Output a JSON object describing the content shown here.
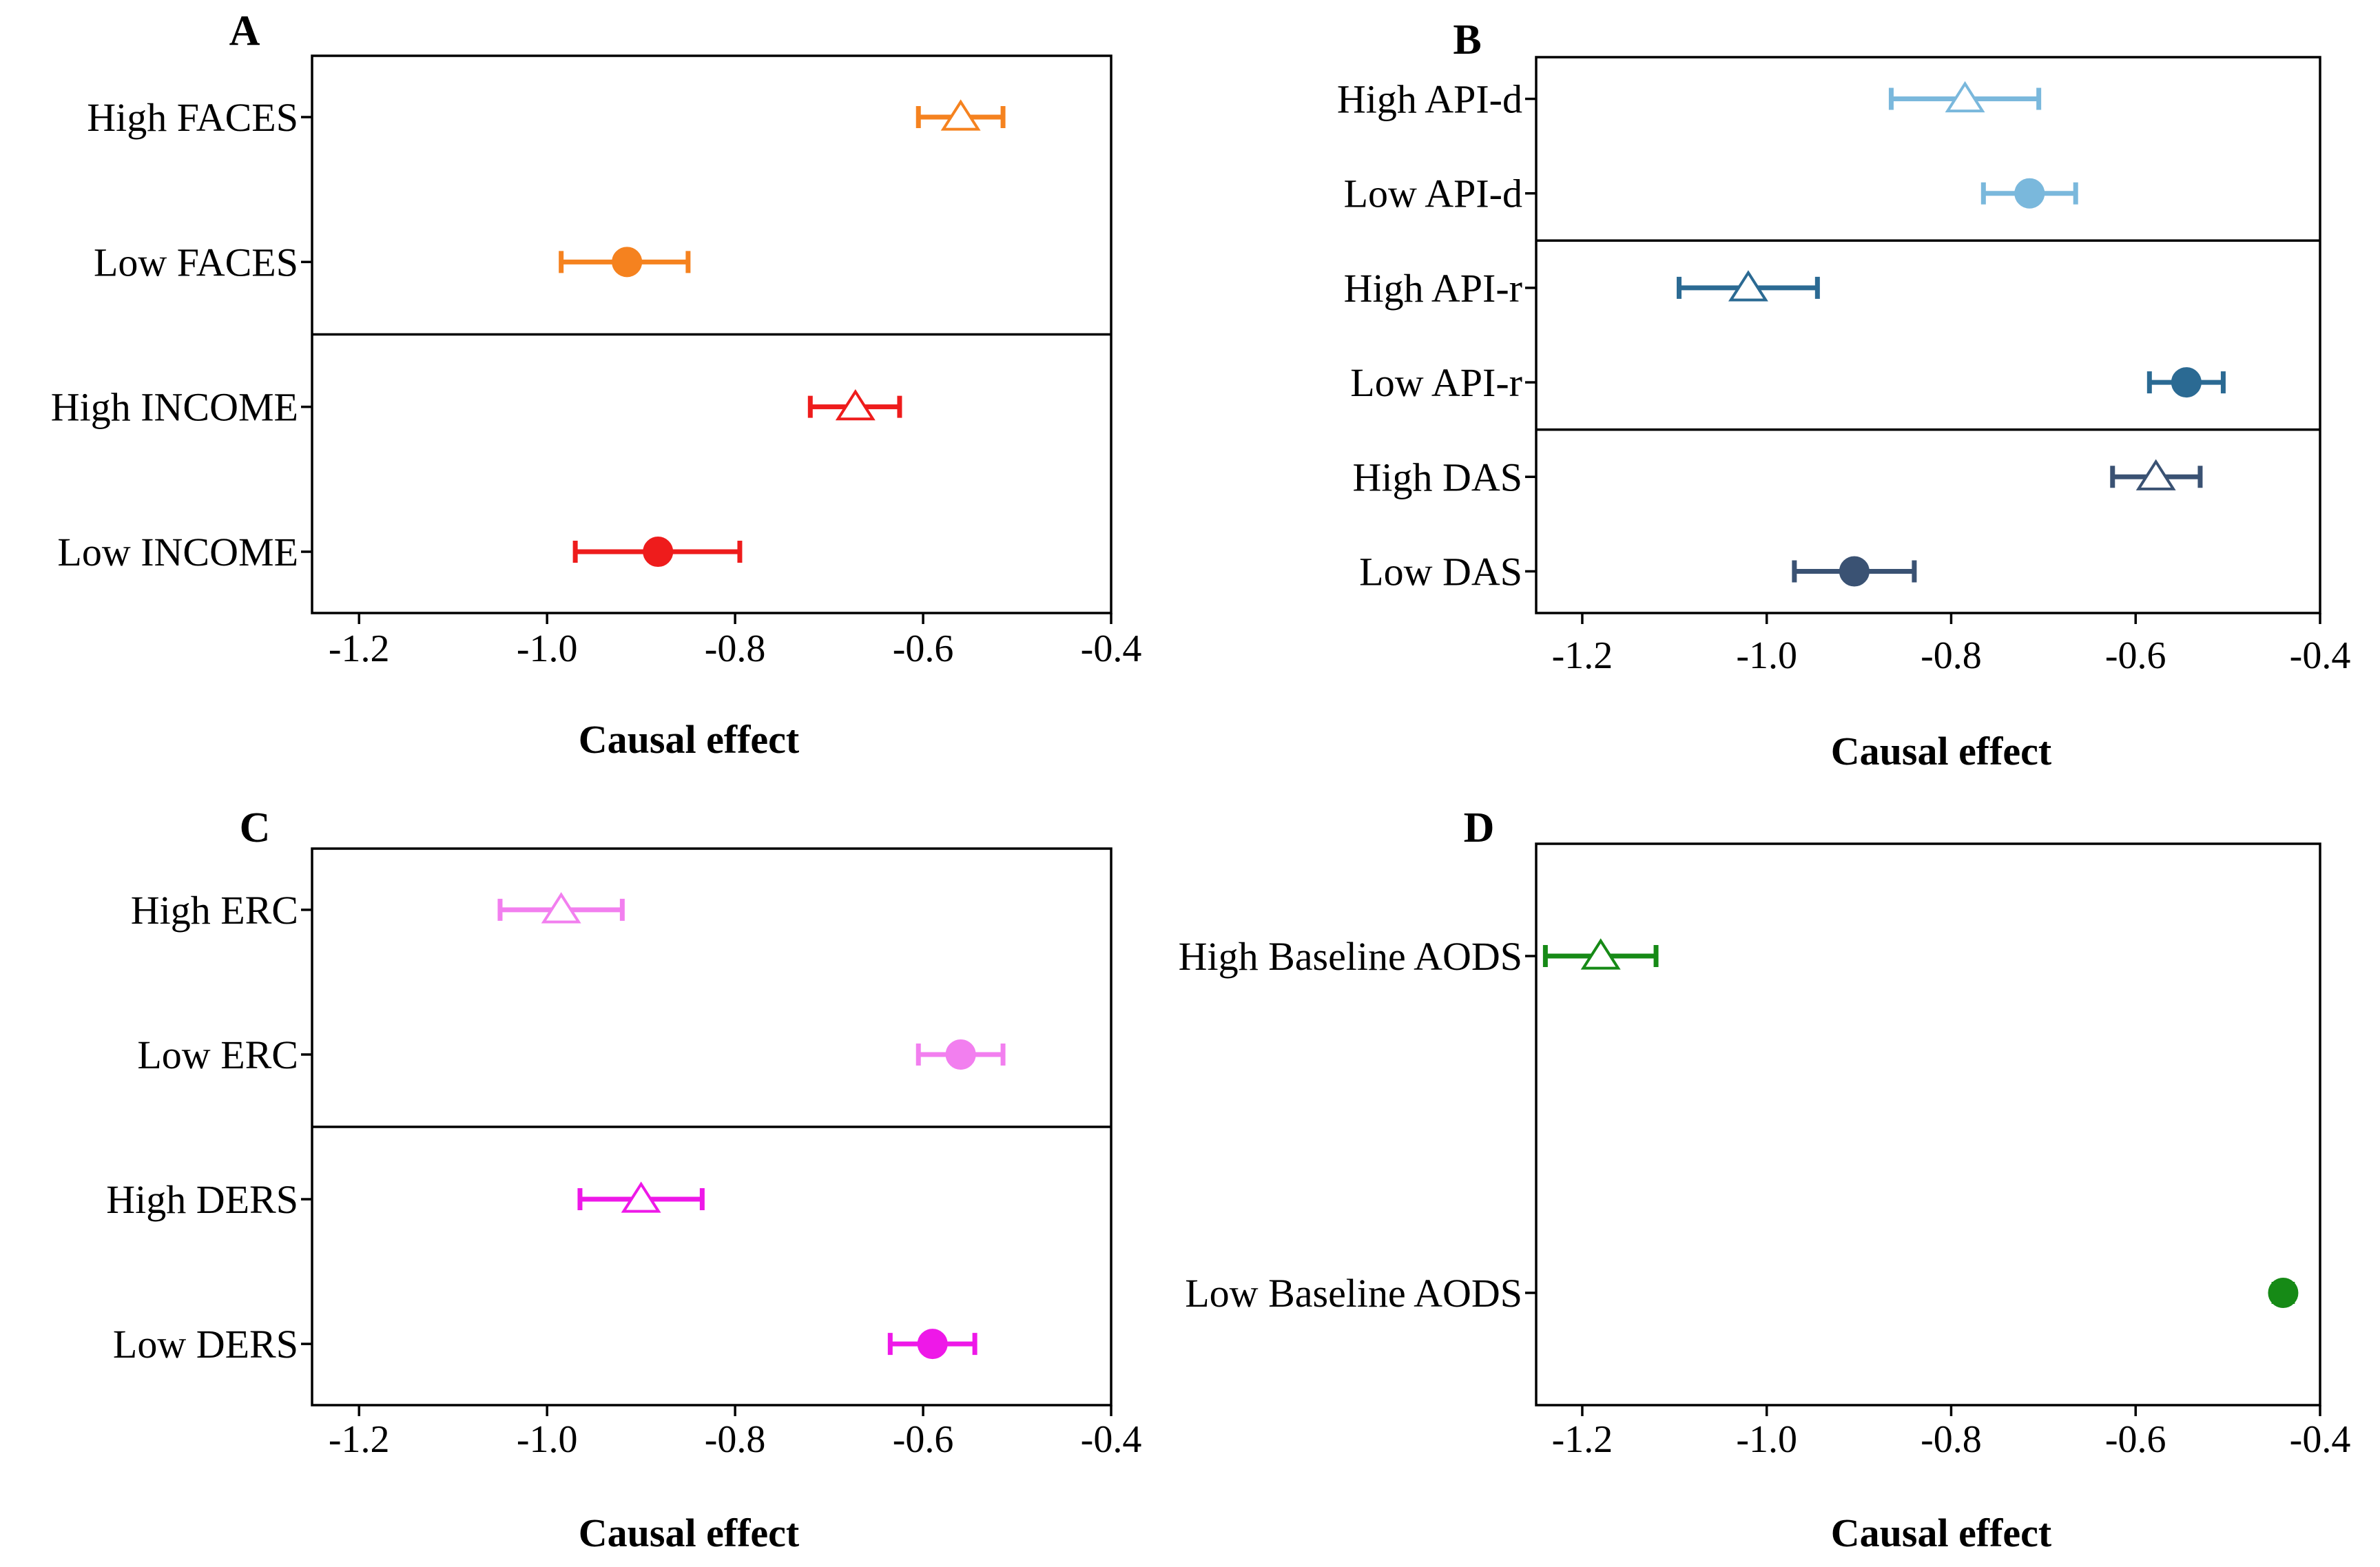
{
  "chart_data": [
    {
      "type": "forest",
      "panel": "A",
      "xlabel": "Causal effect",
      "xlim": [
        -1.25,
        -0.4
      ],
      "xticks": [
        "-1.2",
        "-1.0",
        "-0.8",
        "-0.6",
        "-0.4"
      ],
      "xtick_values": [
        -1.2,
        -1.0,
        -0.8,
        -0.6,
        -0.4
      ],
      "separators_after": [
        2
      ],
      "rows": [
        {
          "label": "High FACES",
          "estimate": -0.56,
          "lower": -0.605,
          "upper": -0.515,
          "marker": "triangle-open",
          "color": "#F5821F"
        },
        {
          "label": "Low FACES",
          "estimate": -0.915,
          "lower": -0.985,
          "upper": -0.85,
          "marker": "circle-filled",
          "color": "#F5821F"
        },
        {
          "label": "High INCOME",
          "estimate": -0.672,
          "lower": -0.72,
          "upper": -0.625,
          "marker": "triangle-open",
          "color": "#EE1C1C"
        },
        {
          "label": "Low INCOME",
          "estimate": -0.882,
          "lower": -0.97,
          "upper": -0.795,
          "marker": "circle-filled",
          "color": "#EE1C1C"
        }
      ]
    },
    {
      "type": "forest",
      "panel": "B",
      "xlabel": "Causal effect",
      "xlim": [
        -1.25,
        -0.4
      ],
      "xticks": [
        "-1.2",
        "-1.0",
        "-0.8",
        "-0.6",
        "-0.4"
      ],
      "xtick_values": [
        -1.2,
        -1.0,
        -0.8,
        -0.6,
        -0.4
      ],
      "separators_after": [
        2,
        4
      ],
      "rows": [
        {
          "label": "High API-d",
          "estimate": -0.785,
          "lower": -0.865,
          "upper": -0.705,
          "marker": "triangle-open",
          "color": "#7AB8DC"
        },
        {
          "label": "Low API-d",
          "estimate": -0.715,
          "lower": -0.765,
          "upper": -0.665,
          "marker": "circle-filled",
          "color": "#7AB8DC"
        },
        {
          "label": "High API-r",
          "estimate": -1.02,
          "lower": -1.095,
          "upper": -0.945,
          "marker": "triangle-open",
          "color": "#2B6A93"
        },
        {
          "label": "Low API-r",
          "estimate": -0.545,
          "lower": -0.585,
          "upper": -0.505,
          "marker": "circle-filled",
          "color": "#2B6A93"
        },
        {
          "label": "High DAS",
          "estimate": -0.578,
          "lower": -0.625,
          "upper": -0.53,
          "marker": "triangle-open",
          "color": "#3A5273"
        },
        {
          "label": "Low DAS",
          "estimate": -0.905,
          "lower": -0.97,
          "upper": -0.84,
          "marker": "circle-filled",
          "color": "#3A5273"
        }
      ]
    },
    {
      "type": "forest",
      "panel": "C",
      "xlabel": "Causal effect",
      "xlim": [
        -1.25,
        -0.4
      ],
      "xticks": [
        "-1.2",
        "-1.0",
        "-0.8",
        "-0.6",
        "-0.4"
      ],
      "xtick_values": [
        -1.2,
        -1.0,
        -0.8,
        -0.6,
        -0.4
      ],
      "separators_after": [
        2
      ],
      "rows": [
        {
          "label": "High ERC",
          "estimate": -0.985,
          "lower": -1.05,
          "upper": -0.92,
          "marker": "triangle-open",
          "color": "#F27FEF"
        },
        {
          "label": "Low ERC",
          "estimate": -0.56,
          "lower": -0.605,
          "upper": -0.515,
          "marker": "circle-filled",
          "color": "#F27FEF"
        },
        {
          "label": "High DERS",
          "estimate": -0.9,
          "lower": -0.965,
          "upper": -0.835,
          "marker": "triangle-open",
          "color": "#EE18E8"
        },
        {
          "label": "Low DERS",
          "estimate": -0.59,
          "lower": -0.635,
          "upper": -0.545,
          "marker": "circle-filled",
          "color": "#EE18E8"
        }
      ]
    },
    {
      "type": "forest",
      "panel": "D",
      "xlabel": "Causal effect",
      "xlim": [
        -1.25,
        -0.4
      ],
      "xticks": [
        "-1.2",
        "-1.0",
        "-0.8",
        "-0.6",
        "-0.4"
      ],
      "xtick_values": [
        -1.2,
        -1.0,
        -0.8,
        -0.6,
        -0.4
      ],
      "separators_after": [],
      "rows": [
        {
          "label": "High Baseline AODS",
          "estimate": -1.18,
          "lower": -1.24,
          "upper": -1.12,
          "marker": "triangle-open",
          "color": "#168A16"
        },
        {
          "label": "Low Baseline AODS",
          "estimate": -0.44,
          "lower": -0.45,
          "upper": -0.43,
          "marker": "circle-filled",
          "color": "#168A16"
        }
      ]
    }
  ]
}
